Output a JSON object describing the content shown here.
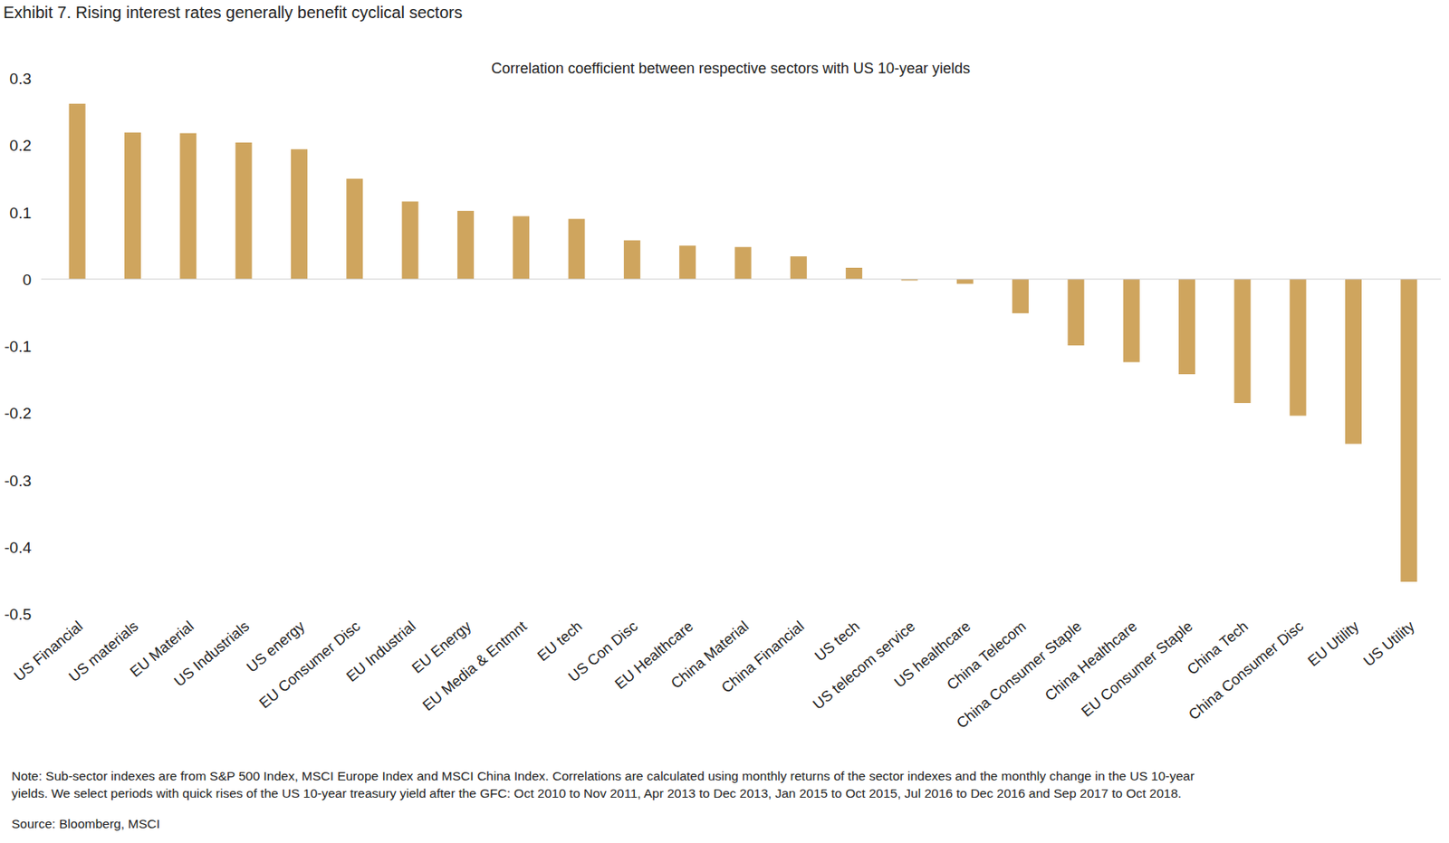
{
  "chart_data": {
    "type": "bar",
    "title": "Exhibit 7. Rising interest rates generally benefit cyclical sectors",
    "subtitle": "Correlation coefficient between respective sectors with US 10-year yields",
    "categories": [
      "US Financial",
      "US materials",
      "EU Material",
      "US Industrials",
      "US energy",
      "EU Consumer Disc",
      "EU Industrial",
      "EU Energy",
      "EU Media & Entmnt",
      "EU tech",
      "US Con Disc",
      "EU Healthcare",
      "China Material",
      "China Financial",
      "US tech",
      "US telecom service",
      "US healthcare",
      "China Telecom",
      "China Consumer Staple",
      "China Healthcare",
      "EU Consumer Staple",
      "China Tech",
      "China Consumer Disc",
      "EU Utility",
      "US Utility"
    ],
    "values": [
      0.262,
      0.219,
      0.218,
      0.204,
      0.194,
      0.15,
      0.116,
      0.102,
      0.094,
      0.09,
      0.058,
      0.05,
      0.048,
      0.034,
      0.017,
      -0.002,
      -0.007,
      -0.051,
      -0.099,
      -0.124,
      -0.142,
      -0.185,
      -0.204,
      -0.246,
      -0.452
    ],
    "color": "#cfa55e",
    "ylim": [
      -0.5,
      0.3
    ],
    "yticks": [
      -0.5,
      -0.4,
      -0.3,
      -0.2,
      -0.1,
      0,
      0.1,
      0.2,
      0.3
    ],
    "grid": false,
    "note": [
      "Note: Sub-sector indexes are from S&P 500 Index, MSCI Europe Index and MSCI China Index. Correlations are calculated using monthly returns of the sector indexes and the monthly change in the US 10-year",
      "yields. We select periods with quick rises of the US 10-year treasury yield after the GFC: Oct 2010 to Nov 2011, Apr 2013 to Dec 2013, Jan 2015 to Oct 2015, Jul 2016 to Dec 2016 and Sep 2017 to Oct 2018."
    ],
    "source": "Source: Bloomberg, MSCI"
  }
}
